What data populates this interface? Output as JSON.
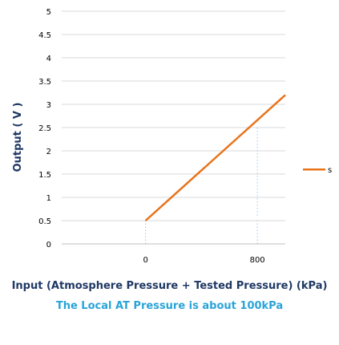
{
  "chart_data": {
    "type": "line",
    "title": "",
    "xlabel": "Input (Atmosphere Pressure + Tested Pressure) (kPa)",
    "ylabel": "Output ( V )",
    "annotation": "The Local AT Pressure is about 100kPa",
    "x_ticks": [
      "0",
      "800"
    ],
    "y_ticks": [
      "0",
      "0.5",
      "1",
      "1.5",
      "2",
      "2.5",
      "3",
      "3.5",
      "4",
      "4.5",
      "5"
    ],
    "xlim": [
      -600,
      1000
    ],
    "ylim": [
      0,
      5
    ],
    "grid": true,
    "legend_position": "right",
    "series": [
      {
        "name": "s",
        "color": "#e8731a",
        "x": [
          0,
          1000
        ],
        "y": [
          0.5,
          3.2
        ]
      }
    ],
    "reference_lines": [
      0,
      800
    ],
    "colors": {
      "line": "#e8731a",
      "grid": "#d9d9d9",
      "reference": "#9dc3e6",
      "axis_title": "#1f3864",
      "note": "#2aa4d8"
    }
  }
}
